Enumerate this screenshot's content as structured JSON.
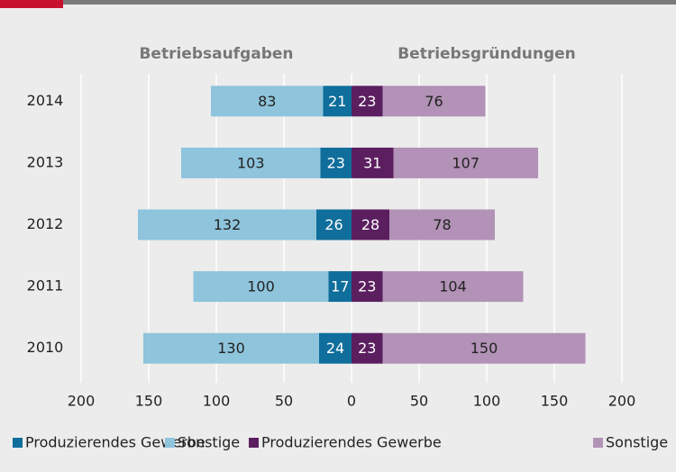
{
  "chart_data": {
    "type": "butterfly-bar",
    "categories": [
      "2014",
      "2013",
      "2012",
      "2011",
      "2010"
    ],
    "groups": [
      {
        "name": "Betriebsaufgaben",
        "series": [
          {
            "name": "Produzierendes Gewerbe",
            "color": "#0f6e9b",
            "values": [
              21,
              23,
              26,
              17,
              24
            ]
          },
          {
            "name": "Sonstige",
            "color": "#8ec4dc",
            "values": [
              83,
              103,
              132,
              100,
              130
            ]
          }
        ]
      },
      {
        "name": "Betriebsgründungen",
        "series": [
          {
            "name": "Produzierendes Gewerbe",
            "color": "#5b1f5f",
            "values": [
              23,
              31,
              28,
              23,
              23
            ]
          },
          {
            "name": "Sonstige",
            "color": "#b292b6",
            "values": [
              76,
              107,
              78,
              104,
              150
            ]
          }
        ]
      }
    ],
    "xlim": [
      -200,
      200
    ],
    "xticks": [
      {
        "value": -200,
        "label": "200"
      },
      {
        "value": -150,
        "label": "150"
      },
      {
        "value": -100,
        "label": "100"
      },
      {
        "value": -50,
        "label": "50"
      },
      0,
      50,
      100,
      150,
      200
    ],
    "grid": true
  }
}
